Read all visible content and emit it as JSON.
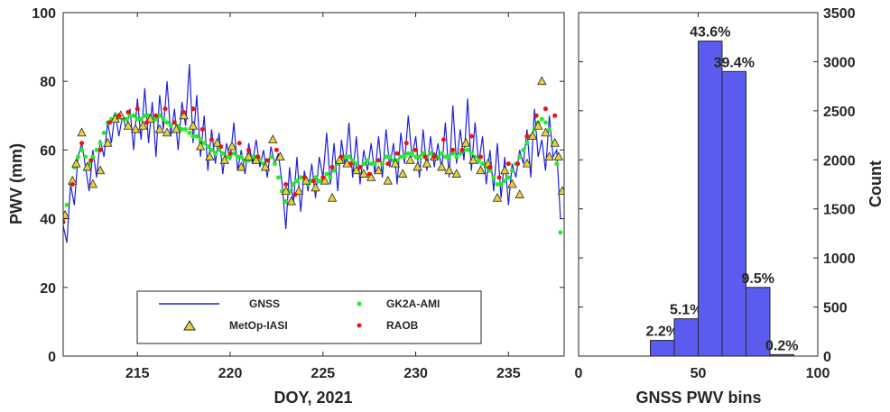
{
  "chart_data": [
    {
      "type": "line",
      "xlabel": "DOY, 2021",
      "ylabel": "PWV (mm)",
      "xlim": [
        211,
        238
      ],
      "ylim": [
        0,
        100
      ],
      "xticks": [
        "215",
        "220",
        "225",
        "230",
        "235"
      ],
      "yticks": [
        "0",
        "20",
        "40",
        "60",
        "80",
        "100"
      ],
      "legend_placement": "bottom-center",
      "series": [
        {
          "name": "GNSS",
          "style": "line",
          "color": "#1f1fe0",
          "x": [
            211.0,
            211.2,
            211.4,
            211.6,
            211.8,
            212.0,
            212.2,
            212.4,
            212.6,
            212.8,
            213.0,
            213.2,
            213.4,
            213.6,
            213.8,
            214.0,
            214.2,
            214.4,
            214.6,
            214.8,
            215.0,
            215.2,
            215.4,
            215.6,
            215.8,
            216.0,
            216.2,
            216.4,
            216.6,
            216.8,
            217.0,
            217.2,
            217.4,
            217.6,
            217.8,
            218.0,
            218.2,
            218.4,
            218.6,
            218.8,
            219.0,
            219.2,
            219.4,
            219.6,
            219.8,
            220.0,
            220.2,
            220.4,
            220.6,
            220.8,
            221.0,
            221.2,
            221.4,
            221.6,
            221.8,
            222.0,
            222.2,
            222.4,
            222.6,
            222.8,
            223.0,
            223.2,
            223.4,
            223.6,
            223.8,
            224.0,
            224.2,
            224.4,
            224.6,
            224.8,
            225.0,
            225.2,
            225.4,
            225.6,
            225.8,
            226.0,
            226.2,
            226.4,
            226.6,
            226.8,
            227.0,
            227.2,
            227.4,
            227.6,
            227.8,
            228.0,
            228.2,
            228.4,
            228.6,
            228.8,
            229.0,
            229.2,
            229.4,
            229.6,
            229.8,
            230.0,
            230.2,
            230.4,
            230.6,
            230.8,
            231.0,
            231.2,
            231.4,
            231.6,
            231.8,
            232.0,
            232.2,
            232.4,
            232.6,
            232.8,
            233.0,
            233.2,
            233.4,
            233.6,
            233.8,
            234.0,
            234.2,
            234.4,
            234.6,
            234.8,
            235.0,
            235.2,
            235.4,
            235.6,
            235.8,
            236.0,
            236.2,
            236.4,
            236.6,
            236.8,
            237.0,
            237.2,
            237.4,
            237.6,
            237.8
          ],
          "y": [
            38,
            33,
            50,
            44,
            58,
            62,
            55,
            48,
            60,
            52,
            63,
            58,
            68,
            62,
            71,
            64,
            70,
            66,
            72,
            60,
            75,
            63,
            78,
            62,
            74,
            58,
            76,
            66,
            80,
            64,
            72,
            60,
            74,
            67,
            85,
            62,
            76,
            58,
            70,
            54,
            66,
            56,
            65,
            53,
            62,
            57,
            68,
            54,
            60,
            53,
            62,
            56,
            63,
            55,
            60,
            52,
            61,
            56,
            59,
            50,
            37,
            55,
            44,
            58,
            42,
            54,
            48,
            56,
            46,
            58,
            52,
            65,
            50,
            62,
            48,
            63,
            55,
            68,
            52,
            64,
            50,
            60,
            54,
            62,
            53,
            64,
            52,
            66,
            55,
            62,
            50,
            65,
            56,
            70,
            58,
            64,
            52,
            66,
            54,
            64,
            55,
            62,
            54,
            68,
            52,
            73,
            56,
            66,
            57,
            75,
            54,
            68,
            56,
            64,
            50,
            60,
            48,
            62,
            46,
            58,
            44,
            56,
            52,
            60,
            56,
            66,
            52,
            72,
            58,
            63,
            54,
            70,
            58,
            60,
            40
          ]
        },
        {
          "name": "GK2A-AMI",
          "style": "dots",
          "color": "#22ee22",
          "x": [
            211.0,
            211.2,
            211.4,
            211.6,
            211.8,
            212.0,
            212.2,
            212.4,
            212.6,
            212.8,
            213.0,
            213.2,
            213.4,
            213.6,
            213.8,
            214.0,
            214.2,
            214.4,
            214.6,
            214.8,
            215.0,
            215.2,
            215.4,
            215.6,
            215.8,
            216.0,
            216.2,
            216.4,
            216.6,
            216.8,
            217.0,
            217.2,
            217.4,
            217.6,
            217.8,
            218.0,
            218.2,
            218.4,
            218.6,
            218.8,
            219.0,
            219.2,
            219.4,
            219.6,
            219.8,
            220.0,
            220.2,
            220.4,
            220.6,
            220.8,
            221.0,
            221.2,
            221.4,
            221.6,
            221.8,
            222.0,
            222.2,
            222.4,
            222.6,
            222.8,
            223.0,
            223.2,
            223.4,
            223.6,
            223.8,
            224.0,
            224.2,
            224.4,
            224.6,
            224.8,
            225.0,
            225.2,
            225.4,
            225.6,
            225.8,
            226.0,
            226.2,
            226.4,
            226.6,
            226.8,
            227.0,
            227.2,
            227.4,
            227.6,
            227.8,
            228.0,
            228.2,
            228.4,
            228.6,
            228.8,
            229.0,
            229.2,
            229.4,
            229.6,
            229.8,
            230.0,
            230.2,
            230.4,
            230.6,
            230.8,
            231.0,
            231.2,
            231.4,
            231.6,
            231.8,
            232.0,
            232.2,
            232.4,
            232.6,
            232.8,
            233.0,
            233.2,
            233.4,
            233.6,
            233.8,
            234.0,
            234.2,
            234.4,
            234.6,
            234.8,
            235.0,
            235.2,
            235.4,
            235.6,
            235.8,
            236.0,
            236.2,
            236.4,
            236.6,
            236.8,
            237.0,
            237.2,
            237.4,
            237.6,
            237.8
          ],
          "y": [
            40,
            44,
            50,
            55,
            58,
            60,
            58,
            56,
            58,
            60,
            62,
            65,
            68,
            69,
            70,
            70,
            69,
            69,
            70,
            70,
            69,
            69,
            70,
            70,
            69,
            69,
            70,
            69,
            68,
            67,
            68,
            67,
            66,
            66,
            65,
            64,
            64,
            63,
            62,
            61,
            60,
            59,
            60,
            59,
            58,
            58,
            59,
            58,
            58,
            57,
            57,
            58,
            58,
            57,
            56,
            57,
            58,
            56,
            52,
            48,
            45,
            48,
            50,
            51,
            52,
            51,
            50,
            51,
            52,
            51,
            51,
            53,
            52,
            54,
            56,
            57,
            58,
            58,
            57,
            56,
            55,
            56,
            57,
            56,
            56,
            57,
            56,
            58,
            58,
            57,
            57,
            58,
            58,
            59,
            59,
            58,
            58,
            59,
            58,
            59,
            58,
            58,
            59,
            58,
            58,
            59,
            58,
            59,
            60,
            60,
            59,
            58,
            57,
            56,
            55,
            54,
            52,
            50,
            50,
            51,
            52,
            54,
            56,
            58,
            60,
            62,
            64,
            66,
            68,
            69,
            68,
            66,
            62,
            56,
            36
          ]
        },
        {
          "name": "MetOp-IASI",
          "style": "triangles",
          "color": "#e6d23c",
          "x": [
            211.1,
            211.5,
            211.7,
            212.0,
            212.3,
            212.6,
            213.0,
            213.4,
            213.8,
            214.1,
            214.5,
            214.9,
            215.3,
            215.7,
            216.2,
            216.6,
            217.1,
            217.5,
            218.0,
            218.4,
            218.9,
            219.3,
            219.7,
            220.1,
            220.6,
            221.0,
            221.4,
            221.9,
            222.3,
            222.7,
            223.0,
            223.3,
            223.7,
            224.1,
            224.6,
            225.1,
            225.5,
            225.9,
            226.3,
            226.8,
            227.2,
            227.6,
            228.0,
            228.5,
            228.9,
            229.3,
            229.7,
            230.1,
            230.6,
            231.0,
            231.4,
            231.8,
            232.2,
            232.7,
            233.1,
            233.5,
            233.9,
            234.4,
            234.8,
            235.2,
            235.6,
            236.0,
            236.3,
            236.6,
            236.8,
            237.0,
            237.2,
            237.5,
            237.7,
            237.9
          ],
          "y": [
            41,
            51,
            56,
            65,
            55,
            50,
            54,
            62,
            69,
            70,
            67,
            66,
            67,
            69,
            66,
            65,
            66,
            70,
            67,
            61,
            58,
            62,
            57,
            61,
            55,
            58,
            57,
            55,
            63,
            58,
            48,
            45,
            48,
            51,
            49,
            51,
            46,
            57,
            56,
            54,
            53,
            52,
            54,
            51,
            56,
            53,
            57,
            55,
            56,
            58,
            55,
            54,
            53,
            62,
            57,
            54,
            56,
            46,
            54,
            50,
            47,
            56,
            64,
            67,
            80,
            65,
            58,
            62,
            58,
            48
          ]
        },
        {
          "name": "RAOB",
          "style": "dots",
          "color": "#ee1111",
          "x": [
            211.0,
            211.5,
            212.0,
            212.5,
            213.0,
            213.5,
            214.0,
            214.5,
            215.0,
            215.5,
            216.0,
            216.5,
            217.0,
            217.5,
            218.0,
            218.5,
            219.0,
            219.5,
            220.0,
            220.5,
            221.0,
            221.5,
            222.0,
            222.5,
            223.0,
            223.5,
            224.0,
            224.5,
            225.0,
            225.5,
            226.0,
            226.5,
            227.0,
            227.5,
            228.0,
            228.5,
            229.0,
            229.5,
            230.0,
            230.5,
            231.0,
            231.5,
            232.0,
            232.5,
            233.0,
            233.5,
            234.0,
            234.5,
            235.0,
            235.5,
            236.0,
            236.5,
            237.0,
            237.5
          ],
          "y": [
            39,
            50,
            62,
            57,
            60,
            68,
            70,
            71,
            72,
            68,
            70,
            72,
            68,
            71,
            72,
            66,
            63,
            61,
            59,
            62,
            60,
            58,
            57,
            60,
            50,
            47,
            52,
            51,
            52,
            55,
            58,
            56,
            55,
            53,
            57,
            56,
            59,
            62,
            60,
            58,
            58,
            63,
            60,
            60,
            64,
            58,
            55,
            52,
            56,
            56,
            64,
            70,
            72,
            70
          ]
        }
      ]
    },
    {
      "type": "bar",
      "xlabel": "GNSS PWV bins",
      "ylabel": "Count",
      "xlim": [
        0,
        100
      ],
      "ylim": [
        0,
        3500
      ],
      "xticks": [
        "0",
        "50",
        "100"
      ],
      "yticks": [
        "0",
        "500",
        "1000",
        "1500",
        "2000",
        "2500",
        "3000",
        "3500"
      ],
      "bin_edges": [
        30,
        40,
        50,
        60,
        70,
        80,
        90
      ],
      "values": [
        160,
        380,
        3210,
        2900,
        700,
        15
      ],
      "labels": [
        "2.2%",
        "5.1%",
        "43.6%",
        "39.4%",
        "9.5%",
        "0.2%"
      ],
      "color": "#5b5bef"
    }
  ]
}
